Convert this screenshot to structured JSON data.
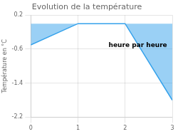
{
  "chart_data": {
    "type": "line",
    "title": "Evolution de la température",
    "y_label": "Température en °C",
    "x": [
      0,
      1,
      2,
      3
    ],
    "values": [
      -0.5,
      0.0,
      0.0,
      -1.8
    ],
    "xlim": [
      0,
      3
    ],
    "xticks": [
      0,
      1,
      2,
      3
    ],
    "ylim": [
      -2.2,
      0.2
    ],
    "yticks": [
      0.2,
      -0.6,
      -1.4,
      -2.2
    ],
    "grid": true,
    "annotations": [
      {
        "text": "heure par heure",
        "x": 1.65,
        "y": -0.55
      }
    ]
  }
}
